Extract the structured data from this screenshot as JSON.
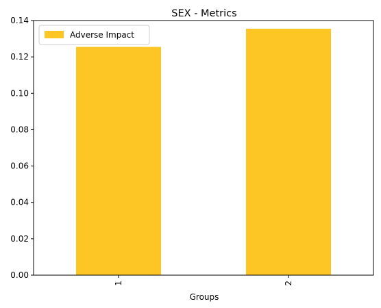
{
  "chart_data": {
    "type": "bar",
    "title": "SEX - Metrics",
    "xlabel": "Groups",
    "ylabel": "",
    "categories": [
      "1",
      "2"
    ],
    "series": [
      {
        "name": "Adverse Impact",
        "values": [
          0.1255,
          0.1355
        ]
      }
    ],
    "ylim": [
      0,
      0.14
    ],
    "yticks": [
      0.0,
      0.02,
      0.04,
      0.06,
      0.08,
      0.1,
      0.12,
      0.14
    ],
    "ytick_labels": [
      "0.00",
      "0.02",
      "0.04",
      "0.06",
      "0.08",
      "0.10",
      "0.12",
      "0.14"
    ],
    "grid": false,
    "legend_position": "top-left",
    "colors": {
      "bar": "#fec624",
      "axis": "#000000",
      "legend_border": "#cccccc"
    }
  }
}
